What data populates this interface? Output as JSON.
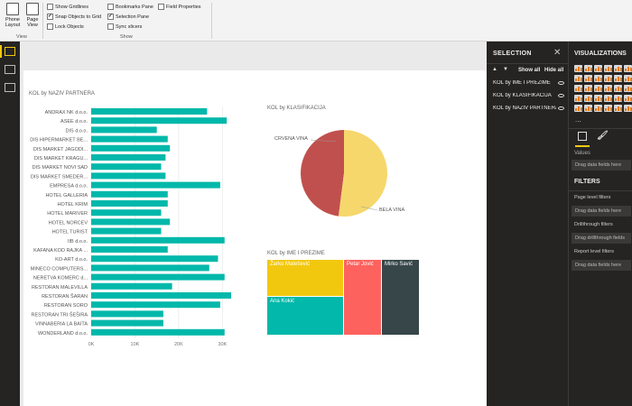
{
  "ribbon": {
    "phone_layout_label": "Phone Layout",
    "page_view_label": "Page View",
    "view_group_label": "View",
    "show_group_label": "Show",
    "checkboxes": [
      {
        "label": "Show Gridlines",
        "checked": false
      },
      {
        "label": "Snap Objects to Grid",
        "checked": true
      },
      {
        "label": "Lock Objects",
        "checked": false
      },
      {
        "label": "Bookmarks Pane",
        "checked": false
      },
      {
        "label": "Selection Pane",
        "checked": true
      },
      {
        "label": "Sync slicers",
        "checked": false
      },
      {
        "label": "Field Properties",
        "checked": false
      }
    ]
  },
  "bar_visual": {
    "title": "KOL by NAZIV PARTNERA",
    "bar_color": "#01B8AA"
  },
  "chart_data": [
    {
      "type": "bar",
      "orientation": "horizontal",
      "categories": [
        "ANDRAX NK d.o.o.",
        "ASEE d.o.o.",
        "DIS d.o.o.",
        "DIS HIPERMARKET BE...",
        "DIS MARKET JAGODI...",
        "DIS MARKET KRAGU...",
        "DIS MARKET NOVI SAD",
        "DIS MARKET SMEDER...",
        "EMPRESA d.o.o.",
        "HOTEL GALLERIA",
        "HOTEL KRIM",
        "HOTEL MARIVER",
        "HOTEL NORCEV",
        "HOTEL TURIST",
        "IIB d.o.o.",
        "KAFANA KOD RAJKA ...",
        "KO-ART d.o.o.",
        "MINECO COMPUTERS...",
        "NERETVA KOMERC d...",
        "RESTORAN MALEVILLA",
        "RESTORAN ŠARAN",
        "RESTORAN SORO",
        "RESTORAN TRI ŠEŠIRA",
        "VINNABERIA LA BAITA",
        "WONDERLAND d.o.o."
      ],
      "values": [
        26500,
        31000,
        15000,
        17500,
        18000,
        17000,
        16000,
        17000,
        29500,
        17500,
        17500,
        16000,
        18000,
        16000,
        30500,
        17500,
        29000,
        27000,
        30500,
        18500,
        32000,
        29500,
        16500,
        16500,
        30500
      ],
      "ticks": [
        "0K",
        "10K",
        "20K",
        "30K"
      ],
      "xlim": [
        0,
        32000
      ],
      "grid": true
    },
    {
      "type": "pie",
      "title": "KOL by KLASIFIKACIJA",
      "labels": [
        "CRVENA VINA",
        "BELA VINA"
      ],
      "values": [
        48,
        52
      ],
      "colors": [
        "#C0504D",
        "#F6D76C"
      ]
    },
    {
      "type": "treemap",
      "title": "KOL by IME I PREZIME",
      "labels": [
        "Žarko Matešević",
        "Ana Kokić",
        "Petar Jović",
        "Mirko Savić"
      ],
      "values": [
        26,
        26,
        27,
        28
      ],
      "colors": [
        "#F2C80F",
        "#01B8AA",
        "#FD625E",
        "#374649"
      ]
    }
  ],
  "pie_visual": {
    "title": "KOL by KLASIFIKACIJA"
  },
  "treemap_visual": {
    "title": "KOL by IME I PREZIME"
  },
  "selection": {
    "title": "SELECTION",
    "show_all": "Show all",
    "hide_all": "Hide all",
    "items": [
      "KOL by IME I PREZIME",
      "KOL by KLASIFIKACIJA",
      "KOL by NAZIV PARTNERA"
    ]
  },
  "visualizations": {
    "title": "VISUALIZATIONS",
    "more": "...",
    "values_label": "Values",
    "drag_text": "Drag data fields here"
  },
  "filters": {
    "title": "FILTERS",
    "page_level": "Page level filters",
    "drag1": "Drag data fields here",
    "drillthrough": "Drillthrough filters",
    "drag_drill": "Drag drillthrough fields",
    "report_level": "Report level filters",
    "drag2": "Drag data fields here"
  }
}
